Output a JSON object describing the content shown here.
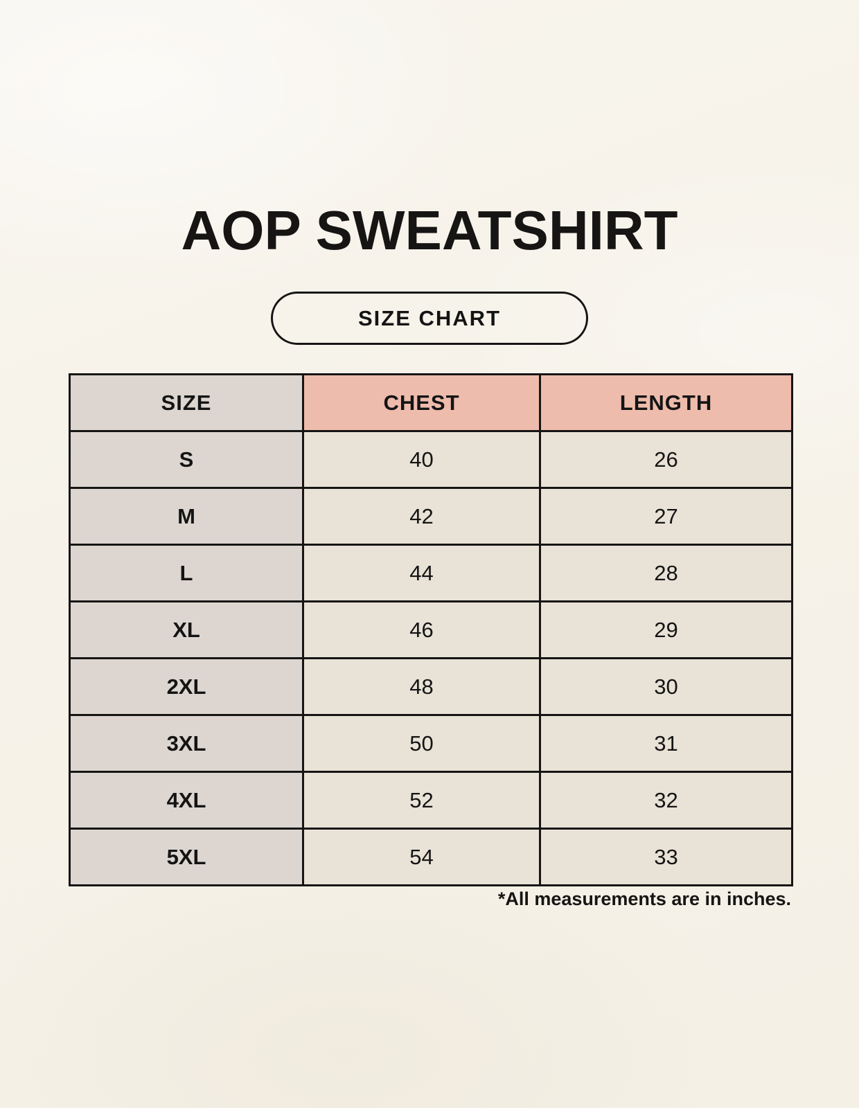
{
  "title": "AOP SWEATSHIRT",
  "badge_label": "SIZE CHART",
  "footnote": "*All measurements are in inches.",
  "chart_data": {
    "type": "table",
    "title": "AOP SWEATSHIRT",
    "subtitle": "SIZE CHART",
    "columns": [
      "SIZE",
      "CHEST",
      "LENGTH"
    ],
    "rows": [
      [
        "S",
        40,
        26
      ],
      [
        "M",
        42,
        27
      ],
      [
        "L",
        44,
        28
      ],
      [
        "XL",
        46,
        29
      ],
      [
        "2XL",
        48,
        30
      ],
      [
        "3XL",
        50,
        31
      ],
      [
        "4XL",
        52,
        32
      ],
      [
        "5XL",
        54,
        33
      ]
    ],
    "units": "inches",
    "note": "*All measurements are in inches."
  },
  "colors": {
    "page_background": "#f6f2e9",
    "size_column_bg": "#ddd6d0",
    "header_accent_bg": "#eebcac",
    "data_cell_bg": "#e9e2d6",
    "border": "#161514",
    "text": "#161514"
  }
}
